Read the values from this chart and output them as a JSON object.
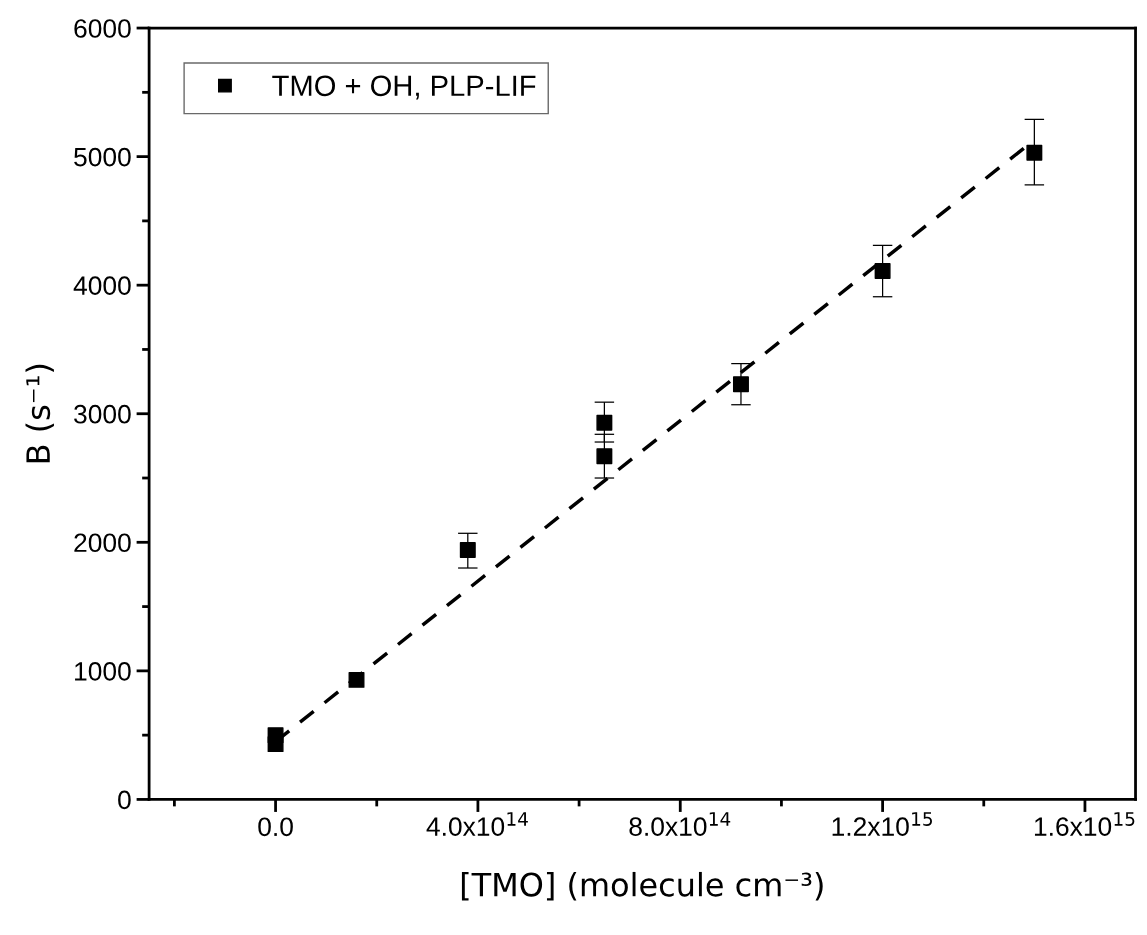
{
  "chart_data": {
    "type": "scatter",
    "xlabel": "[TMO] (molecule cm⁻³)",
    "ylabel": "B (s⁻¹)",
    "xlim": [
      -250000000000000.0,
      1700000000000000.0
    ],
    "ylim": [
      0,
      6000
    ],
    "xticks": [
      {
        "value": 0,
        "label": "0.0"
      },
      {
        "value": 400000000000000.0,
        "label": "4.0x10$^{14}$"
      },
      {
        "value": 800000000000000.0,
        "label": "8.0x10$^{14}$"
      },
      {
        "value": 1200000000000000.0,
        "label": "1.2x10$^{15}$"
      },
      {
        "value": 1600000000000000.0,
        "label": "1.6x10$^{15}$"
      }
    ],
    "yticks": [
      0,
      1000,
      2000,
      3000,
      4000,
      5000,
      6000
    ],
    "legend": "top left",
    "grid": false,
    "series": [
      {
        "name": "TMO + OH, PLP-LIF",
        "color": "#000000",
        "marker": "square",
        "x": [
          0,
          0,
          160000000000000.0,
          380000000000000.0,
          650000000000000.0,
          650000000000000.0,
          920000000000000.0,
          1200000000000000.0,
          1500000000000000.0
        ],
        "values": [
          430,
          500,
          930,
          1940,
          2670,
          2930,
          3230,
          4110,
          5030
        ],
        "errors": [
          null,
          null,
          null,
          [
            1800,
            2070
          ],
          [
            2500,
            2840
          ],
          [
            2780,
            3090
          ],
          [
            3070,
            3390
          ],
          [
            3910,
            4310
          ],
          [
            4780,
            5290
          ]
        ]
      },
      {
        "type": "line",
        "color": "#000000",
        "line_style": "dashed",
        "marker": "none",
        "x": [
          0,
          1500000000000000.0
        ],
        "values": [
          450,
          5130
        ]
      }
    ]
  }
}
